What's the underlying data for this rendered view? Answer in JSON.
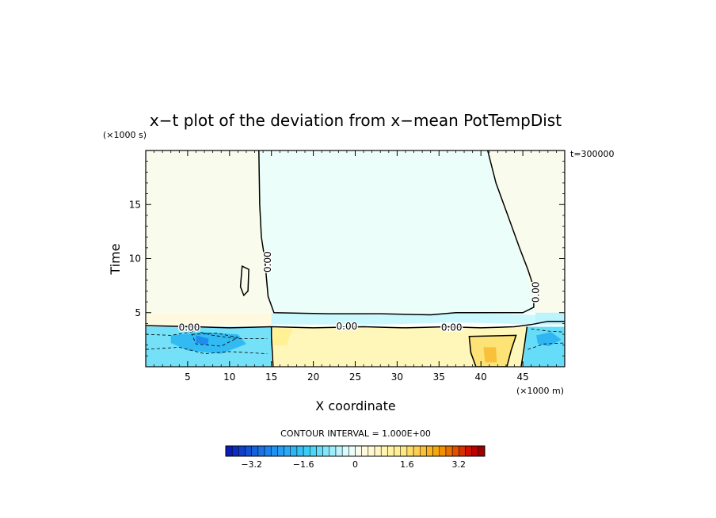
{
  "chart_data": {
    "type": "heatmap",
    "title": "x−t plot of the deviation from x−mean PotTempDist",
    "xlabel": "X coordinate",
    "ylabel": "Time",
    "x_unit_label": "(×1000 m)",
    "y_unit_label": "(×1000 s)",
    "time_label": "t=300000",
    "xlim": [
      0,
      50
    ],
    "ylim": [
      0,
      20
    ],
    "x_ticks": [
      5,
      10,
      15,
      20,
      25,
      30,
      35,
      40,
      45
    ],
    "y_ticks": [
      5,
      10,
      15
    ],
    "contour_interval_label": "CONTOUR INTERVAL = 1.000E+00",
    "contour_labels": [
      {
        "text": "0.00",
        "x": 5.2,
        "y": 3.6,
        "rotate": 0
      },
      {
        "text": "0.00",
        "x": 24.0,
        "y": 3.7,
        "rotate": 0
      },
      {
        "text": "0.00",
        "x": 36.5,
        "y": 3.6,
        "rotate": 0
      },
      {
        "text": "0.00",
        "x": 14.6,
        "y": 9.7,
        "rotate": -90
      },
      {
        "text": "0.00",
        "x": 46.6,
        "y": 6.9,
        "rotate": -90
      }
    ],
    "regions": [
      {
        "name": "upper-left-warm",
        "value": 0.1,
        "polygon": [
          [
            0,
            20
          ],
          [
            13.5,
            20
          ],
          [
            13.6,
            14
          ],
          [
            14.3,
            10
          ],
          [
            14.8,
            5.5
          ],
          [
            15.3,
            5
          ],
          [
            0,
            5
          ]
        ]
      },
      {
        "name": "upper-middle-cool",
        "value": -0.1,
        "polygon": [
          [
            13.5,
            20
          ],
          [
            40.8,
            20
          ],
          [
            42.5,
            15
          ],
          [
            45,
            10
          ],
          [
            46.2,
            6.5
          ],
          [
            46.5,
            5
          ],
          [
            15.3,
            5
          ],
          [
            14.8,
            5.5
          ],
          [
            14.3,
            10
          ],
          [
            13.6,
            14
          ]
        ]
      },
      {
        "name": "upper-right-warm",
        "value": 0.1,
        "polygon": [
          [
            40.8,
            20
          ],
          [
            50,
            20
          ],
          [
            50,
            5
          ],
          [
            46.5,
            5
          ],
          [
            46.2,
            6.5
          ],
          [
            45,
            10
          ],
          [
            42.5,
            15
          ]
        ]
      },
      {
        "name": "transition-warm-left",
        "value": 0.3,
        "polygon": [
          [
            0,
            5
          ],
          [
            15.3,
            5
          ],
          [
            15,
            3.8
          ],
          [
            0,
            3.8
          ]
        ]
      },
      {
        "name": "transition-cool-strip",
        "value": -0.4,
        "polygon": [
          [
            15,
            5
          ],
          [
            28,
            4.8
          ],
          [
            37,
            5
          ],
          [
            46.5,
            4.8
          ],
          [
            46.5,
            3.9
          ],
          [
            37,
            4.1
          ],
          [
            28,
            3.9
          ],
          [
            15,
            3.9
          ]
        ]
      },
      {
        "name": "transition-right-cool",
        "value": -0.5,
        "polygon": [
          [
            46.5,
            5
          ],
          [
            50,
            5
          ],
          [
            50,
            3.9
          ],
          [
            46.5,
            3.9
          ]
        ]
      },
      {
        "name": "lower-left-cool",
        "value": -1.0,
        "polygon": [
          [
            0,
            3.7
          ],
          [
            15,
            3.7
          ],
          [
            15,
            0
          ],
          [
            0,
            0
          ]
        ]
      },
      {
        "name": "lower-left-cool-strong",
        "value": -1.8,
        "polygon": [
          [
            3,
            2.9
          ],
          [
            7,
            3.2
          ],
          [
            11,
            3
          ],
          [
            12,
            2.1
          ],
          [
            9,
            1.2
          ],
          [
            5,
            1.5
          ],
          [
            3,
            2.2
          ]
        ]
      },
      {
        "name": "lower-left-cool-core",
        "value": -2.6,
        "polygon": [
          [
            6,
            2.9
          ],
          [
            7.5,
            2.6
          ],
          [
            7.4,
            2.0
          ],
          [
            6.0,
            2.2
          ]
        ]
      },
      {
        "name": "lower-middle-warm",
        "value": 0.8,
        "polygon": [
          [
            15,
            3.7
          ],
          [
            45.5,
            3.7
          ],
          [
            45.5,
            0
          ],
          [
            15,
            0
          ]
        ]
      },
      {
        "name": "lower-middle-warm-2",
        "value": 1.3,
        "polygon": [
          [
            15.2,
            3.6
          ],
          [
            17.5,
            3.5
          ],
          [
            16.8,
            2.0
          ],
          [
            15.2,
            2.0
          ]
        ]
      },
      {
        "name": "lower-right-warm-patch",
        "value": 1.6,
        "polygon": [
          [
            38.5,
            2.8
          ],
          [
            44.2,
            2.9
          ],
          [
            43.6,
            1.5
          ],
          [
            43,
            0
          ],
          [
            39.5,
            0
          ],
          [
            38.7,
            1.2
          ]
        ]
      },
      {
        "name": "lower-right-warm-core",
        "value": 2.1,
        "polygon": [
          [
            40.3,
            1.8
          ],
          [
            41.8,
            1.8
          ],
          [
            41.9,
            0.4
          ],
          [
            40.5,
            0.4
          ]
        ]
      },
      {
        "name": "lower-right-cool",
        "value": -1.1,
        "polygon": [
          [
            45.5,
            3.7
          ],
          [
            50,
            3.7
          ],
          [
            50,
            0
          ],
          [
            45,
            0
          ]
        ]
      },
      {
        "name": "lower-right-cool-strong",
        "value": -1.9,
        "polygon": [
          [
            46.6,
            2.9
          ],
          [
            48.4,
            3.2
          ],
          [
            49.6,
            2.5
          ],
          [
            48.1,
            1.9
          ],
          [
            46.8,
            2.1
          ]
        ]
      }
    ],
    "contour_lines": [
      {
        "name": "zero-contour-upper-left",
        "style": "solid",
        "points": [
          [
            13.5,
            20
          ],
          [
            13.6,
            15
          ],
          [
            13.8,
            12
          ],
          [
            14.2,
            10
          ],
          [
            14.6,
            6.5
          ],
          [
            15.3,
            5.0
          ],
          [
            22,
            4.9
          ],
          [
            28,
            4.9
          ],
          [
            34,
            4.8
          ],
          [
            37,
            5.0
          ],
          [
            45,
            5.0
          ],
          [
            46.3,
            5.5
          ],
          [
            46.3,
            6.5
          ]
        ]
      },
      {
        "name": "zero-contour-upper-right",
        "style": "solid",
        "points": [
          [
            40.8,
            20
          ],
          [
            41.8,
            17
          ],
          [
            43.2,
            14
          ],
          [
            44.6,
            11
          ],
          [
            45.6,
            9
          ],
          [
            46.2,
            7.6
          ]
        ]
      },
      {
        "name": "zero-contour-lower",
        "style": "solid",
        "points": [
          [
            0,
            3.8
          ],
          [
            6,
            3.7
          ],
          [
            10,
            3.6
          ],
          [
            15,
            3.7
          ],
          [
            20,
            3.6
          ],
          [
            26,
            3.7
          ],
          [
            31,
            3.6
          ],
          [
            36,
            3.7
          ],
          [
            40,
            3.6
          ],
          [
            44,
            3.7
          ],
          [
            46,
            3.9
          ],
          [
            48,
            4.2
          ],
          [
            50,
            4.2
          ]
        ]
      },
      {
        "name": "zero-contour-left-vertical",
        "style": "solid",
        "points": [
          [
            15,
            3.7
          ],
          [
            15,
            2.8
          ],
          [
            15.2,
            0
          ]
        ]
      },
      {
        "name": "zero-contour-right-vertical",
        "style": "solid",
        "points": [
          [
            45.5,
            3.7
          ],
          [
            45.2,
            2
          ],
          [
            44.8,
            0
          ]
        ]
      },
      {
        "name": "zero-contour-blob",
        "style": "solid",
        "closed": true,
        "points": [
          [
            11.5,
            9.3
          ],
          [
            12.3,
            9.0
          ],
          [
            12.2,
            7.0
          ],
          [
            11.7,
            6.6
          ],
          [
            11.3,
            7.4
          ]
        ]
      },
      {
        "name": "warm-patch-contour",
        "style": "solid",
        "closed": true,
        "points": [
          [
            38.6,
            2.8
          ],
          [
            44.2,
            2.9
          ],
          [
            43.6,
            1.5
          ],
          [
            43.1,
            0
          ],
          [
            39.4,
            0
          ],
          [
            38.8,
            1.3
          ]
        ]
      },
      {
        "name": "neg-contour-1",
        "style": "dashed",
        "points": [
          [
            0,
            3.0
          ],
          [
            3,
            2.9
          ],
          [
            6,
            3.3
          ],
          [
            8,
            2.9
          ],
          [
            11,
            2.6
          ],
          [
            14.5,
            2.6
          ]
        ]
      },
      {
        "name": "neg-contour-2",
        "style": "dashed",
        "points": [
          [
            0,
            1.6
          ],
          [
            4,
            1.8
          ],
          [
            7,
            1.2
          ],
          [
            10,
            1.4
          ],
          [
            14.5,
            1.2
          ]
        ]
      },
      {
        "name": "neg-contour-3",
        "style": "dashed",
        "closed": true,
        "points": [
          [
            5.5,
            3.0
          ],
          [
            8.5,
            3.1
          ],
          [
            11.0,
            2.7
          ],
          [
            9.0,
            1.9
          ],
          [
            6.0,
            2.1
          ]
        ]
      },
      {
        "name": "neg-contour-right-1",
        "style": "dashed",
        "points": [
          [
            46,
            3.5
          ],
          [
            48,
            3.3
          ],
          [
            50,
            3.2
          ]
        ]
      },
      {
        "name": "neg-contour-right-2",
        "style": "dashed",
        "points": [
          [
            45.6,
            1.6
          ],
          [
            47.5,
            2.1
          ],
          [
            50,
            2.2
          ]
        ]
      }
    ],
    "colorbar": {
      "min": -4.0,
      "max": 4.0,
      "step": 0.2,
      "tick_labels": [
        "−3.2",
        "−1.6",
        "0",
        "1.6",
        "3.2"
      ],
      "tick_values": [
        -3.2,
        -1.6,
        0,
        1.6,
        3.2
      ],
      "colors": {
        "deep_blue": "#0a14b4",
        "mid_blue": "#1e8cf0",
        "cyan": "#3cd2f5",
        "pale_cyan": "#e6ffff",
        "pale_yellow": "#fffbe6",
        "yellow": "#fff08c",
        "orange": "#f5a000",
        "red": "#c80000",
        "deep_red": "#8c0000"
      }
    }
  }
}
